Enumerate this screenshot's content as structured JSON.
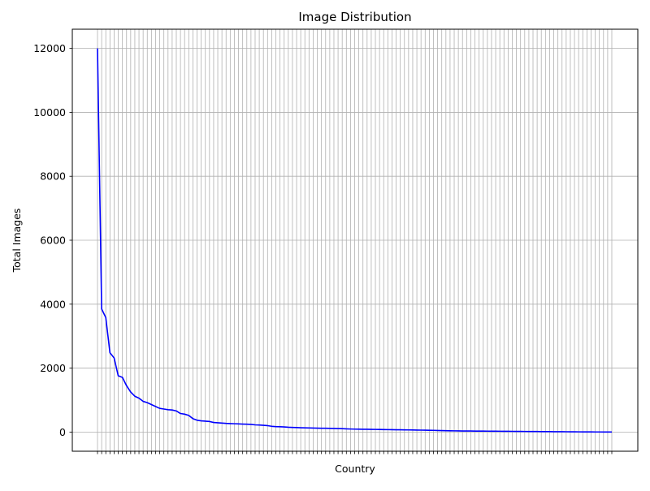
{
  "chart_data": {
    "type": "line",
    "title": "Image Distribution",
    "xlabel": "Country",
    "ylabel": "Total Images",
    "ylim": [
      -600,
      12600
    ],
    "yticks": [
      0,
      2000,
      4000,
      6000,
      8000,
      10000,
      12000
    ],
    "ytick_labels": [
      "0",
      "2000",
      "4000",
      "6000",
      "8000",
      "10000",
      "12000"
    ],
    "grid": true,
    "x_tick_labels_visible": false,
    "colors": {
      "line": "#0000ff",
      "grid": "#b0b0b0",
      "axes": "#000000"
    },
    "series": [
      {
        "values": [
          12000,
          3850,
          3580,
          2480,
          2320,
          1760,
          1710,
          1450,
          1250,
          1120,
          1060,
          960,
          920,
          860,
          800,
          740,
          720,
          700,
          690,
          660,
          580,
          560,
          520,
          420,
          370,
          350,
          340,
          330,
          300,
          290,
          280,
          270,
          265,
          260,
          255,
          250,
          245,
          240,
          225,
          220,
          210,
          200,
          180,
          170,
          165,
          160,
          150,
          145,
          140,
          135,
          132,
          128,
          125,
          122,
          120,
          118,
          115,
          112,
          108,
          105,
          100,
          95,
          92,
          90,
          88,
          86,
          84,
          82,
          80,
          78,
          76,
          74,
          72,
          70,
          68,
          66,
          64,
          62,
          60,
          58,
          56,
          54,
          50,
          45,
          42,
          40,
          38,
          36,
          34,
          33,
          32,
          31,
          30,
          29,
          28,
          27,
          26,
          25,
          24,
          23,
          22,
          21,
          20,
          19,
          18,
          17,
          16,
          15,
          14,
          13,
          12,
          11,
          10,
          9,
          8,
          7,
          6,
          5,
          4,
          4,
          3,
          3,
          2,
          2,
          1
        ]
      }
    ]
  }
}
